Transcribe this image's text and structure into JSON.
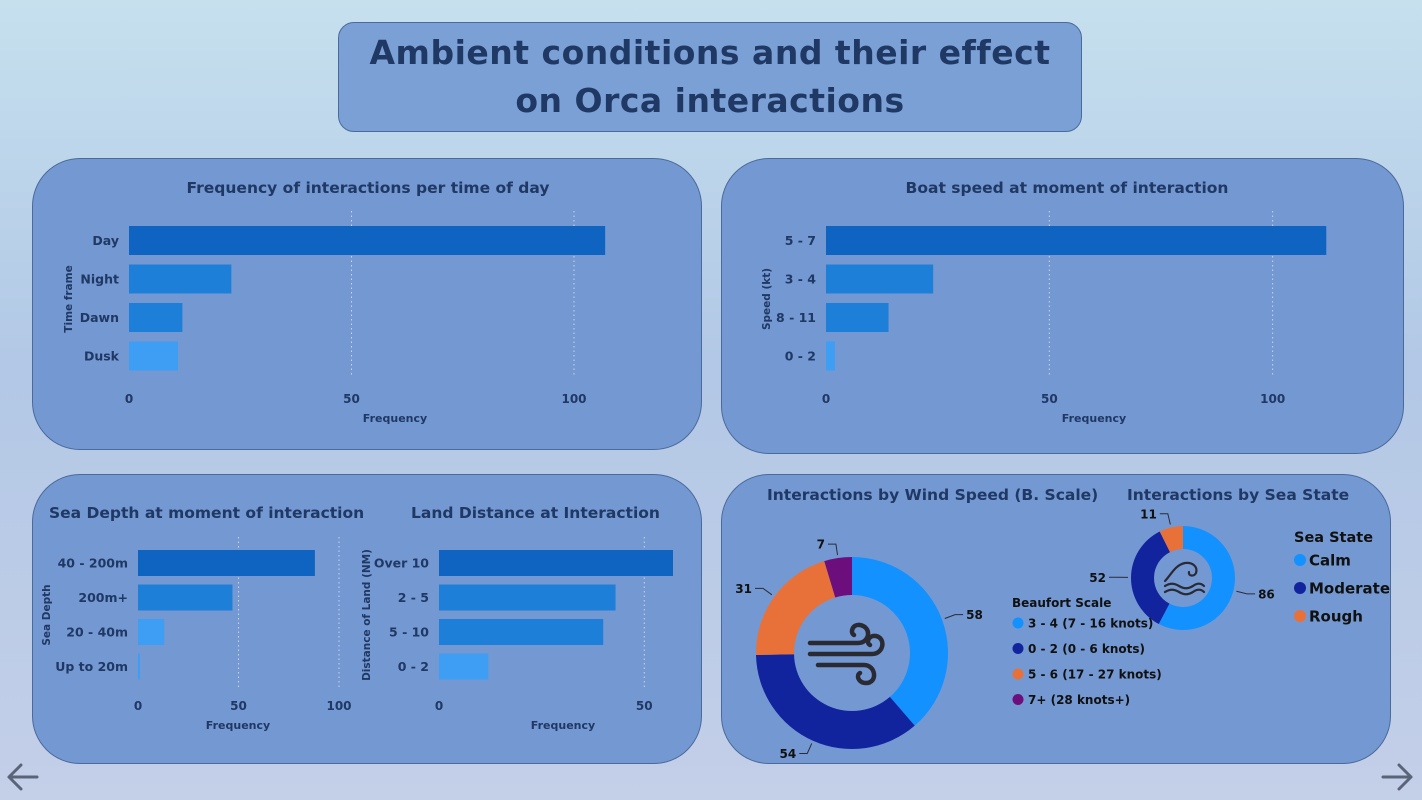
{
  "page_title_lines": [
    "Ambient conditions and their effect",
    "on Orca interactions"
  ],
  "colors": {
    "bar_dark": "#0e64c0",
    "bar_mid": "#1e7fd8",
    "bar_light": "#3d9ef4",
    "calm": "#1391ff",
    "moderate": "#12239e",
    "rough": "#e8713a",
    "purple": "#6c0f7d"
  },
  "chart_data": [
    {
      "id": "time_of_day",
      "type": "bar",
      "orientation": "horizontal",
      "title": "Frequency of interactions per time of day",
      "xlabel": "Frequency",
      "ylabel": "Time frame",
      "categories": [
        "Day",
        "Night",
        "Dawn",
        "Dusk"
      ],
      "values": [
        107,
        23,
        12,
        11
      ],
      "xticks": [
        0,
        50,
        100
      ],
      "xlim": [
        0,
        120
      ],
      "grid": true
    },
    {
      "id": "boat_speed",
      "type": "bar",
      "orientation": "horizontal",
      "title": "Boat speed at moment of interaction",
      "xlabel": "Frequency",
      "ylabel": "Speed (kt)",
      "categories": [
        "5 - 7",
        "3 - 4",
        "8 - 11",
        "0 - 2"
      ],
      "values": [
        112,
        24,
        14,
        2
      ],
      "xticks": [
        0,
        50,
        100
      ],
      "xlim": [
        0,
        120
      ],
      "grid": true
    },
    {
      "id": "sea_depth",
      "type": "bar",
      "orientation": "horizontal",
      "title": "Sea Depth at moment of interaction",
      "xlabel": "Frequency",
      "ylabel": "Sea Depth",
      "categories": [
        "40 - 200m",
        "200m+",
        "20 - 40m",
        "Up to 20m"
      ],
      "values": [
        88,
        47,
        13,
        1
      ],
      "xticks": [
        0,
        50,
        100
      ],
      "xlim": [
        0,
        100
      ],
      "grid": true
    },
    {
      "id": "land_distance",
      "type": "bar",
      "orientation": "horizontal",
      "title": "Land Distance at Interaction",
      "xlabel": "Frequency",
      "ylabel": "Distance of Land (NM)",
      "categories": [
        "Over 10",
        "2 - 5",
        "5 - 10",
        "0 - 2"
      ],
      "values": [
        57,
        43,
        40,
        12
      ],
      "xticks": [
        0,
        50
      ],
      "xlim": [
        0,
        57
      ],
      "grid": true
    },
    {
      "id": "wind_speed",
      "type": "pie",
      "donut": true,
      "title": "Interactions by Wind Speed (B. Scale)",
      "legend_title": "Beaufort Scale",
      "legend_placement": "right",
      "slices": [
        {
          "label": "3 - 4 (7 - 16 knots)",
          "value": 58,
          "color": "#1391ff"
        },
        {
          "label": "0 - 2 (0 - 6 knots)",
          "value": 54,
          "color": "#12239e"
        },
        {
          "label": "5 - 6 (17 - 27 knots)",
          "value": 31,
          "color": "#e8713a"
        },
        {
          "label": "7+ (28 knots+)",
          "value": 7,
          "color": "#6c0f7d"
        }
      ],
      "center_icon": "wind-icon"
    },
    {
      "id": "sea_state",
      "type": "pie",
      "donut": true,
      "title": "Interactions by Sea State",
      "legend_title": "Sea State",
      "legend_placement": "right",
      "slices": [
        {
          "label": "Calm",
          "value": 86,
          "color": "#1391ff"
        },
        {
          "label": "Moderate",
          "value": 52,
          "color": "#12239e"
        },
        {
          "label": "Rough",
          "value": 11,
          "color": "#e8713a"
        }
      ],
      "center_icon": "waves-icon"
    }
  ],
  "nav": {
    "prev_icon": "arrow-left-icon",
    "next_icon": "arrow-right-icon"
  }
}
